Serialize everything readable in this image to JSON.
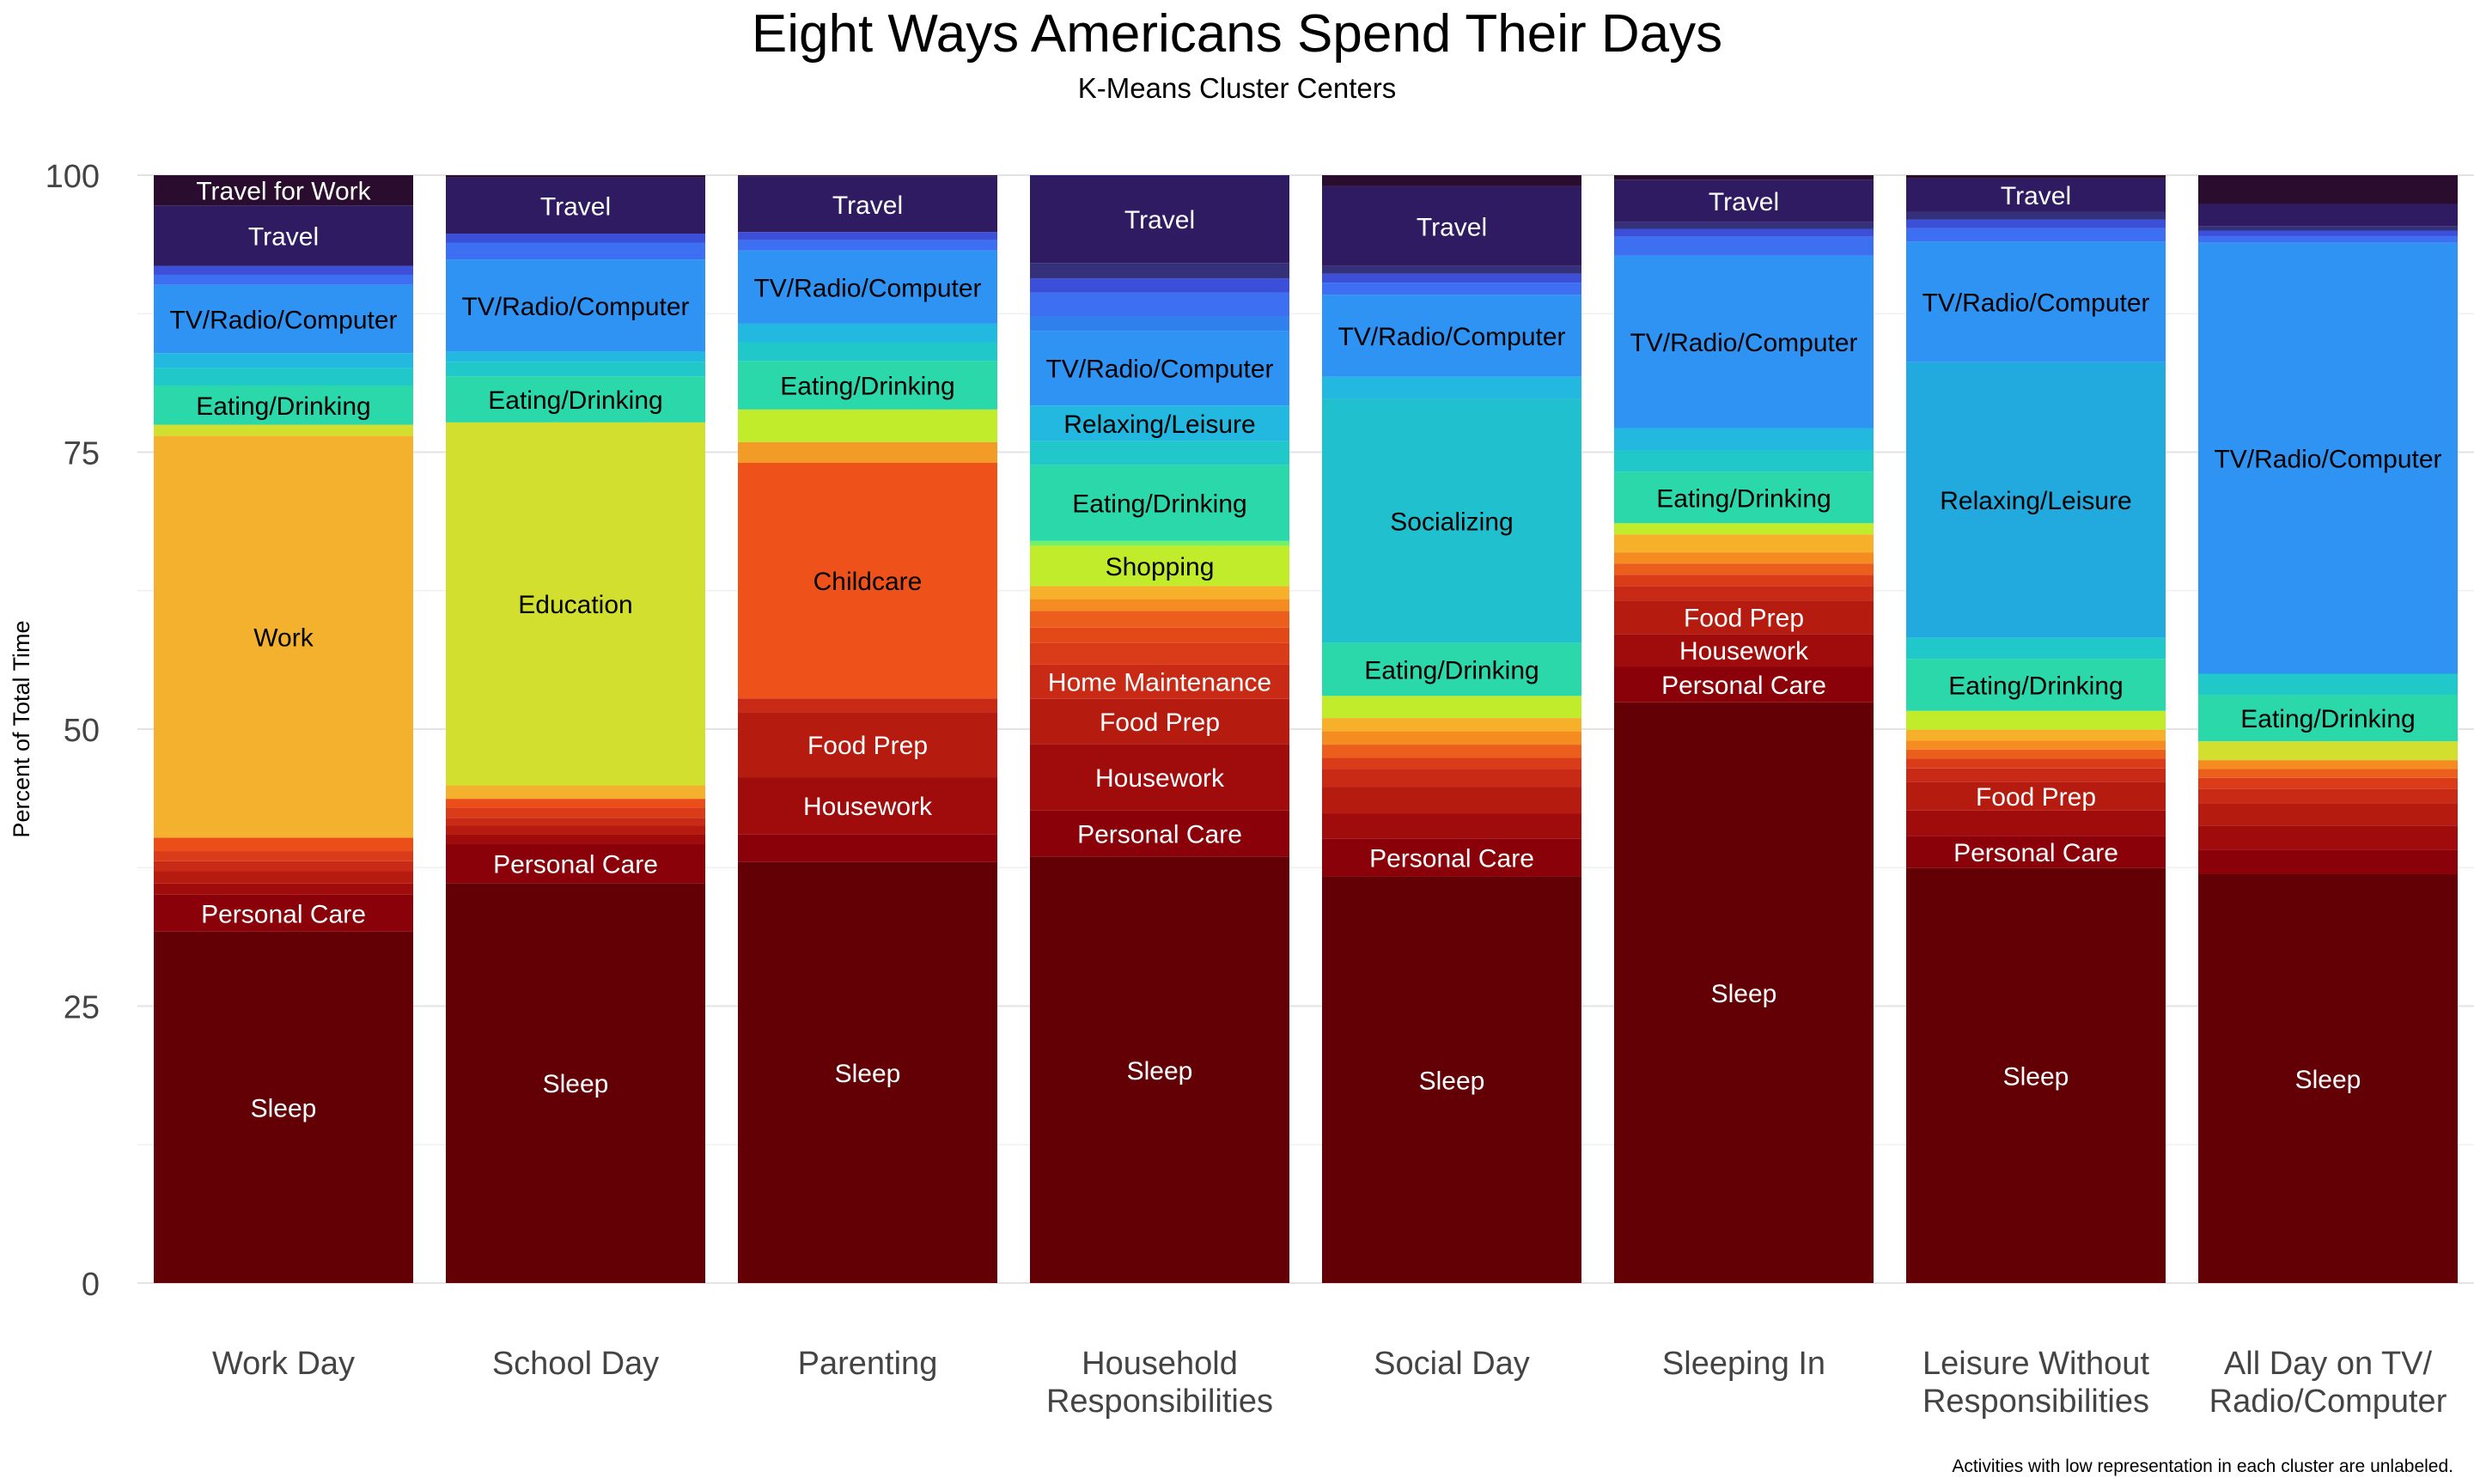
{
  "chart_data": {
    "type": "bar",
    "stacked": true,
    "title": "Eight Ways Americans Spend Their Days",
    "subtitle": "K-Means Cluster Centers",
    "ylabel": "Percent of Total Time",
    "xlabel": "",
    "ylim": [
      0,
      100
    ],
    "yticks": [
      0,
      25,
      50,
      75,
      100
    ],
    "grid": true,
    "legend": "none",
    "note": "Activities with low representation in each cluster are unlabeled.",
    "categories": [
      "Work Day",
      "School Day",
      "Parenting",
      "Household\nResponsibilities",
      "Social Day",
      "Sleeping In",
      "Leisure Without\nResponsibilities",
      "All Day on TV/\nRadio/Computer"
    ],
    "bars": [
      {
        "segments": [
          {
            "value": 31.4,
            "color": "#620006",
            "label": "Sleep"
          },
          {
            "value": 3.3,
            "color": "#8a0109",
            "label": "Personal Care"
          },
          {
            "value": 1.0,
            "color": "#a00b0b",
            "label": ""
          },
          {
            "value": 1.1,
            "color": "#b61b0f",
            "label": ""
          },
          {
            "value": 0.9,
            "color": "#c92a16",
            "label": ""
          },
          {
            "value": 0.9,
            "color": "#da3b18",
            "label": ""
          },
          {
            "value": 1.2,
            "color": "#ec4e1a",
            "label": ""
          },
          {
            "value": 35.9,
            "color": "#f3b12d",
            "label": "Work"
          },
          {
            "value": 1.0,
            "color": "#d3df2e",
            "label": ""
          },
          {
            "value": 3.5,
            "color": "#2bd8a9",
            "label": "Eating/Drinking"
          },
          {
            "value": 1.6,
            "color": "#20c8c9",
            "label": ""
          },
          {
            "value": 1.3,
            "color": "#22b8e0",
            "label": ""
          },
          {
            "value": 6.1,
            "color": "#2e93f3",
            "label": "TV/Radio/Computer"
          },
          {
            "value": 0.9,
            "color": "#3c6ff2",
            "label": ""
          },
          {
            "value": 0.8,
            "color": "#3c4fd8",
            "label": ""
          },
          {
            "value": 5.4,
            "color": "#2e1b62",
            "label": "Travel"
          },
          {
            "value": 2.7,
            "color": "#2a0c2e",
            "label": "Travel for Work"
          }
        ]
      },
      {
        "segments": [
          {
            "value": 35.6,
            "color": "#620006",
            "label": "Sleep"
          },
          {
            "value": 3.5,
            "color": "#8a0109",
            "label": "Personal Care"
          },
          {
            "value": 0.8,
            "color": "#a00b0b",
            "label": ""
          },
          {
            "value": 0.8,
            "color": "#b61b0f",
            "label": ""
          },
          {
            "value": 0.7,
            "color": "#c92a16",
            "label": ""
          },
          {
            "value": 0.9,
            "color": "#da3b18",
            "label": ""
          },
          {
            "value": 0.8,
            "color": "#ec4e1a",
            "label": ""
          },
          {
            "value": 1.2,
            "color": "#f3b12d",
            "label": ""
          },
          {
            "value": 32.3,
            "color": "#d3df2e",
            "label": "Education"
          },
          {
            "value": 4.1,
            "color": "#2bd8a9",
            "label": "Eating/Drinking"
          },
          {
            "value": 1.3,
            "color": "#20c8c9",
            "label": ""
          },
          {
            "value": 0.9,
            "color": "#22b8e0",
            "label": ""
          },
          {
            "value": 8.2,
            "color": "#2e93f3",
            "label": "TV/Radio/Computer"
          },
          {
            "value": 1.5,
            "color": "#3c6ff2",
            "label": ""
          },
          {
            "value": 0.8,
            "color": "#3c4fd8",
            "label": ""
          },
          {
            "value": 5.0,
            "color": "#2e1b62",
            "label": "Travel"
          },
          {
            "value": 0.2,
            "color": "#2a0c2e",
            "label": ""
          }
        ]
      },
      {
        "segments": [
          {
            "value": 36.3,
            "color": "#620006",
            "label": "Sleep"
          },
          {
            "value": 2.4,
            "color": "#8a0109",
            "label": ""
          },
          {
            "value": 4.9,
            "color": "#a00b0b",
            "label": "Housework"
          },
          {
            "value": 5.6,
            "color": "#b61b0f",
            "label": "Food Prep"
          },
          {
            "value": 1.2,
            "color": "#c92a16",
            "label": ""
          },
          {
            "value": 20.3,
            "color": "#ee5119",
            "label": "Childcare"
          },
          {
            "value": 1.8,
            "color": "#f29b26",
            "label": ""
          },
          {
            "value": 2.8,
            "color": "#c0ec2c",
            "label": ""
          },
          {
            "value": 4.2,
            "color": "#2bd8a9",
            "label": "Eating/Drinking"
          },
          {
            "value": 1.6,
            "color": "#20c8c9",
            "label": ""
          },
          {
            "value": 1.6,
            "color": "#22b8e0",
            "label": ""
          },
          {
            "value": 6.3,
            "color": "#2e93f3",
            "label": "TV/Radio/Computer"
          },
          {
            "value": 0.9,
            "color": "#3c6ff2",
            "label": ""
          },
          {
            "value": 0.7,
            "color": "#3c4fd8",
            "label": ""
          },
          {
            "value": 4.8,
            "color": "#2e1b62",
            "label": "Travel"
          },
          {
            "value": 0.1,
            "color": "#2a0c2e",
            "label": ""
          }
        ]
      },
      {
        "segments": [
          {
            "value": 35.9,
            "color": "#620006",
            "label": "Sleep"
          },
          {
            "value": 3.9,
            "color": "#8a0109",
            "label": "Personal Care"
          },
          {
            "value": 5.6,
            "color": "#a00b0b",
            "label": "Housework"
          },
          {
            "value": 3.8,
            "color": "#b61b0f",
            "label": "Food Prep"
          },
          {
            "value": 2.9,
            "color": "#c92a16",
            "label": "Home Maintenance"
          },
          {
            "value": 1.8,
            "color": "#da3b18",
            "label": ""
          },
          {
            "value": 1.3,
            "color": "#e24818",
            "label": ""
          },
          {
            "value": 1.4,
            "color": "#ec5e1c",
            "label": ""
          },
          {
            "value": 1.0,
            "color": "#f58c22",
            "label": ""
          },
          {
            "value": 1.1,
            "color": "#f6b02a",
            "label": ""
          },
          {
            "value": 3.4,
            "color": "#c0ec2c",
            "label": "Shopping"
          },
          {
            "value": 0.4,
            "color": "#6ff26a",
            "label": ""
          },
          {
            "value": 6.4,
            "color": "#2bd8a9",
            "label": "Eating/Drinking"
          },
          {
            "value": 2.0,
            "color": "#20c8c9",
            "label": ""
          },
          {
            "value": 3.0,
            "color": "#22b8e0",
            "label": "Relaxing/Leisure"
          },
          {
            "value": 6.3,
            "color": "#2e93f3",
            "label": "TV/Radio/Computer"
          },
          {
            "value": 1.2,
            "color": "#2f7fed",
            "label": ""
          },
          {
            "value": 2.0,
            "color": "#3c6ff2",
            "label": ""
          },
          {
            "value": 1.2,
            "color": "#3c4fd8",
            "label": ""
          },
          {
            "value": 1.3,
            "color": "#34307a",
            "label": ""
          },
          {
            "value": 7.4,
            "color": "#2e1b62",
            "label": "Travel"
          }
        ]
      },
      {
        "segments": [
          {
            "value": 36.7,
            "color": "#620006",
            "label": "Sleep"
          },
          {
            "value": 3.4,
            "color": "#8a0109",
            "label": "Personal Care"
          },
          {
            "value": 2.3,
            "color": "#a00b0b",
            "label": ""
          },
          {
            "value": 2.4,
            "color": "#b61b0f",
            "label": ""
          },
          {
            "value": 1.6,
            "color": "#c92a16",
            "label": ""
          },
          {
            "value": 1.0,
            "color": "#da3b18",
            "label": ""
          },
          {
            "value": 1.2,
            "color": "#ec5e1c",
            "label": ""
          },
          {
            "value": 1.2,
            "color": "#f58c22",
            "label": ""
          },
          {
            "value": 1.2,
            "color": "#f6b02a",
            "label": ""
          },
          {
            "value": 2.0,
            "color": "#c0ec2c",
            "label": ""
          },
          {
            "value": 4.8,
            "color": "#2bd8a9",
            "label": "Eating/Drinking"
          },
          {
            "value": 22.0,
            "color": "#20c0cf",
            "label": "Socializing"
          },
          {
            "value": 2.0,
            "color": "#22b8e0",
            "label": ""
          },
          {
            "value": 7.4,
            "color": "#2e93f3",
            "label": "TV/Radio/Computer"
          },
          {
            "value": 1.1,
            "color": "#3c6ff2",
            "label": ""
          },
          {
            "value": 0.8,
            "color": "#3c4fd8",
            "label": ""
          },
          {
            "value": 0.7,
            "color": "#34307a",
            "label": ""
          },
          {
            "value": 7.2,
            "color": "#2e1b62",
            "label": "Travel"
          },
          {
            "value": 1.0,
            "color": "#2a0c2e",
            "label": ""
          }
        ]
      },
      {
        "segments": [
          {
            "value": 51.9,
            "color": "#620006",
            "label": "Sleep"
          },
          {
            "value": 3.2,
            "color": "#8a0109",
            "label": "Personal Care"
          },
          {
            "value": 2.9,
            "color": "#a00b0b",
            "label": "Housework"
          },
          {
            "value": 3.0,
            "color": "#b61b0f",
            "label": "Food Prep"
          },
          {
            "value": 1.3,
            "color": "#c92a16",
            "label": ""
          },
          {
            "value": 1.0,
            "color": "#da3b18",
            "label": ""
          },
          {
            "value": 1.0,
            "color": "#ec5e1c",
            "label": ""
          },
          {
            "value": 1.0,
            "color": "#f58c22",
            "label": ""
          },
          {
            "value": 1.6,
            "color": "#f6b02a",
            "label": ""
          },
          {
            "value": 1.0,
            "color": "#c0ec2c",
            "label": ""
          },
          {
            "value": 4.6,
            "color": "#2bd8a9",
            "label": "Eating/Drinking"
          },
          {
            "value": 1.9,
            "color": "#20c8c9",
            "label": ""
          },
          {
            "value": 2.0,
            "color": "#22b8e0",
            "label": ""
          },
          {
            "value": 15.4,
            "color": "#2e93f3",
            "label": "TV/Radio/Computer"
          },
          {
            "value": 1.7,
            "color": "#3c6ff2",
            "label": ""
          },
          {
            "value": 0.7,
            "color": "#3c4fd8",
            "label": ""
          },
          {
            "value": 0.6,
            "color": "#34307a",
            "label": ""
          },
          {
            "value": 3.8,
            "color": "#2e1b62",
            "label": "Travel"
          },
          {
            "value": 0.4,
            "color": "#2a0c2e",
            "label": ""
          }
        ]
      },
      {
        "segments": [
          {
            "value": 37.5,
            "color": "#620006",
            "label": "Sleep"
          },
          {
            "value": 2.9,
            "color": "#8a0109",
            "label": "Personal Care"
          },
          {
            "value": 2.3,
            "color": "#a00b0b",
            "label": ""
          },
          {
            "value": 2.6,
            "color": "#b61b0f",
            "label": "Food Prep"
          },
          {
            "value": 1.2,
            "color": "#c92a16",
            "label": ""
          },
          {
            "value": 0.9,
            "color": "#da3b18",
            "label": ""
          },
          {
            "value": 0.8,
            "color": "#ec5e1c",
            "label": ""
          },
          {
            "value": 0.8,
            "color": "#f58c22",
            "label": ""
          },
          {
            "value": 1.0,
            "color": "#f6b02a",
            "label": ""
          },
          {
            "value": 1.7,
            "color": "#c0ec2c",
            "label": ""
          },
          {
            "value": 4.7,
            "color": "#2bd8a9",
            "label": "Eating/Drinking"
          },
          {
            "value": 1.9,
            "color": "#20c8c9",
            "label": ""
          },
          {
            "value": 24.9,
            "color": "#22aadf",
            "label": "Relaxing/Leisure"
          },
          {
            "value": 10.9,
            "color": "#2e93f3",
            "label": "TV/Radio/Computer"
          },
          {
            "value": 1.2,
            "color": "#3c6ff2",
            "label": ""
          },
          {
            "value": 0.8,
            "color": "#3c4fd8",
            "label": ""
          },
          {
            "value": 0.7,
            "color": "#34307a",
            "label": ""
          },
          {
            "value": 3.0,
            "color": "#2e1b62",
            "label": "Travel"
          },
          {
            "value": 0.3,
            "color": "#2a0c2e",
            "label": ""
          }
        ]
      },
      {
        "segments": [
          {
            "value": 36.9,
            "color": "#620006",
            "label": "Sleep"
          },
          {
            "value": 2.2,
            "color": "#8a0109",
            "label": ""
          },
          {
            "value": 2.2,
            "color": "#a00b0b",
            "label": ""
          },
          {
            "value": 2.0,
            "color": "#b61b0f",
            "label": ""
          },
          {
            "value": 1.3,
            "color": "#c92a16",
            "label": ""
          },
          {
            "value": 1.0,
            "color": "#da3b18",
            "label": ""
          },
          {
            "value": 0.8,
            "color": "#ec5e1c",
            "label": ""
          },
          {
            "value": 0.8,
            "color": "#f58c22",
            "label": ""
          },
          {
            "value": 1.7,
            "color": "#d3df2e",
            "label": ""
          },
          {
            "value": 4.2,
            "color": "#2bd8a9",
            "label": "Eating/Drinking"
          },
          {
            "value": 1.9,
            "color": "#20c8c9",
            "label": ""
          },
          {
            "value": 38.9,
            "color": "#2e93f3",
            "label": "TV/Radio/Computer"
          },
          {
            "value": 0.6,
            "color": "#3c6ff2",
            "label": ""
          },
          {
            "value": 0.5,
            "color": "#3c4fd8",
            "label": ""
          },
          {
            "value": 0.4,
            "color": "#34307a",
            "label": ""
          },
          {
            "value": 2.0,
            "color": "#2e1b62",
            "label": ""
          },
          {
            "value": 2.6,
            "color": "#2a0c2e",
            "label": ""
          }
        ]
      }
    ]
  }
}
